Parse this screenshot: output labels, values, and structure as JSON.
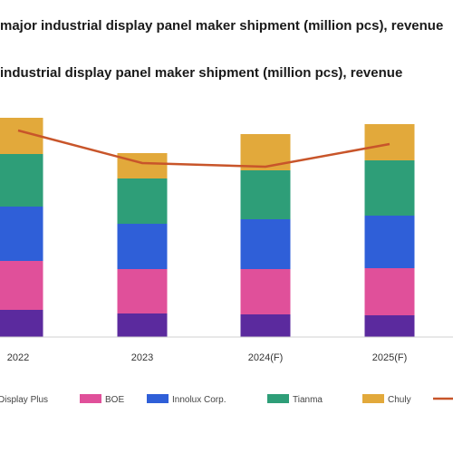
{
  "titles": [
    "major industrial display panel maker shipment (million pcs), revenue",
    "industrial display panel maker shipment (million pcs), revenue"
  ],
  "colors": {
    "Display Plus": "#5b2a9e",
    "BOE": "#e0509a",
    "Innolux Corp.": "#2f5fd8",
    "Tianma": "#2e9e78",
    "Chuly": "#e2a93b",
    "line": "#c8552a"
  },
  "chart_data": {
    "type": "bar",
    "stacked": true,
    "categories": [
      "2022",
      "2023",
      "2024(F)",
      "2025(F)"
    ],
    "series": [
      {
        "name": "Display Plus",
        "values": [
          30,
          26,
          25,
          24
        ]
      },
      {
        "name": "BOE",
        "values": [
          54,
          49,
          50,
          52
        ]
      },
      {
        "name": "Innolux Corp.",
        "values": [
          60,
          50,
          55,
          58
        ]
      },
      {
        "name": "Tianma",
        "values": [
          58,
          50,
          54,
          61
        ]
      },
      {
        "name": "Chuly",
        "values": [
          40,
          28,
          40,
          40
        ]
      }
    ],
    "line_series": {
      "values": [
        228,
        192,
        188,
        213
      ]
    },
    "ylim": [
      0,
      300
    ],
    "legend_position": "bottom"
  }
}
